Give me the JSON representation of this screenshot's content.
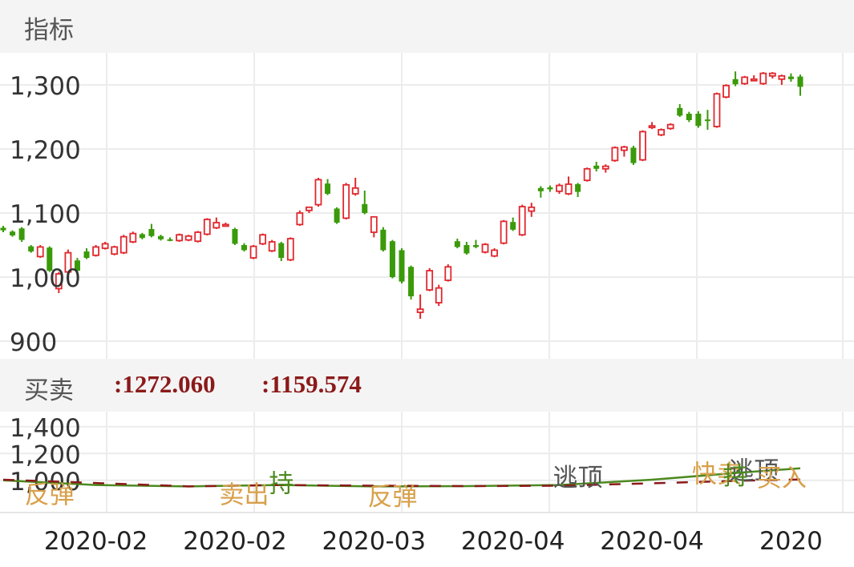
{
  "header": {
    "title": "指标"
  },
  "subheader": {
    "title": "买卖",
    "value_a": ":1272.060",
    "value_b": ":1159.574"
  },
  "colors": {
    "up": "#e0282e",
    "down": "#3a9a0a",
    "fast_line": "#4c8a1f",
    "slow_line": "#8b1a1a"
  },
  "chart_data": [
    {
      "type": "candlestick",
      "ylim": [
        880,
        1340
      ],
      "yticks": [
        "900",
        "1,000",
        "1,100",
        "1,200",
        "1,300"
      ],
      "grid": true,
      "candles": [
        {
          "o": 1077,
          "c": 1073,
          "h": 1080,
          "l": 1070
        },
        {
          "o": 1071,
          "c": 1065,
          "h": 1073,
          "l": 1063
        },
        {
          "o": 1076,
          "c": 1058,
          "h": 1078,
          "l": 1055
        },
        {
          "o": 1048,
          "c": 1040,
          "h": 1050,
          "l": 1038
        },
        {
          "o": 1032,
          "c": 1047,
          "h": 1050,
          "l": 1030
        },
        {
          "o": 1046,
          "c": 1010,
          "h": 1048,
          "l": 1008
        },
        {
          "o": 982,
          "c": 1005,
          "h": 1008,
          "l": 975
        },
        {
          "o": 1008,
          "c": 1038,
          "h": 1043,
          "l": 1005
        },
        {
          "o": 1026,
          "c": 1010,
          "h": 1030,
          "l": 1005
        },
        {
          "o": 1040,
          "c": 1030,
          "h": 1045,
          "l": 1028
        },
        {
          "o": 1034,
          "c": 1047,
          "h": 1050,
          "l": 1032
        },
        {
          "o": 1045,
          "c": 1052,
          "h": 1055,
          "l": 1043
        },
        {
          "o": 1036,
          "c": 1047,
          "h": 1049,
          "l": 1034
        },
        {
          "o": 1038,
          "c": 1063,
          "h": 1066,
          "l": 1036
        },
        {
          "o": 1055,
          "c": 1068,
          "h": 1071,
          "l": 1053
        },
        {
          "o": 1067,
          "c": 1061,
          "h": 1069,
          "l": 1059
        },
        {
          "o": 1075,
          "c": 1064,
          "h": 1083,
          "l": 1062
        },
        {
          "o": 1064,
          "c": 1059,
          "h": 1066,
          "l": 1057
        },
        {
          "o": 1059,
          "c": 1058,
          "h": 1062,
          "l": 1056
        },
        {
          "o": 1057,
          "c": 1066,
          "h": 1068,
          "l": 1055
        },
        {
          "o": 1058,
          "c": 1064,
          "h": 1066,
          "l": 1056
        },
        {
          "o": 1056,
          "c": 1070,
          "h": 1072,
          "l": 1054
        },
        {
          "o": 1067,
          "c": 1090,
          "h": 1092,
          "l": 1065
        },
        {
          "o": 1077,
          "c": 1085,
          "h": 1093,
          "l": 1075
        },
        {
          "o": 1082,
          "c": 1082,
          "h": 1085,
          "l": 1079
        },
        {
          "o": 1075,
          "c": 1052,
          "h": 1077,
          "l": 1050
        },
        {
          "o": 1050,
          "c": 1042,
          "h": 1053,
          "l": 1040
        },
        {
          "o": 1030,
          "c": 1048,
          "h": 1050,
          "l": 1028
        },
        {
          "o": 1052,
          "c": 1066,
          "h": 1068,
          "l": 1050
        },
        {
          "o": 1041,
          "c": 1055,
          "h": 1058,
          "l": 1039
        },
        {
          "o": 1053,
          "c": 1030,
          "h": 1055,
          "l": 1025
        },
        {
          "o": 1027,
          "c": 1060,
          "h": 1062,
          "l": 1025
        },
        {
          "o": 1082,
          "c": 1100,
          "h": 1104,
          "l": 1080
        },
        {
          "o": 1104,
          "c": 1109,
          "h": 1110,
          "l": 1100
        },
        {
          "o": 1113,
          "c": 1152,
          "h": 1155,
          "l": 1110
        },
        {
          "o": 1146,
          "c": 1130,
          "h": 1153,
          "l": 1128
        },
        {
          "o": 1107,
          "c": 1085,
          "h": 1109,
          "l": 1083
        },
        {
          "o": 1092,
          "c": 1144,
          "h": 1147,
          "l": 1090
        },
        {
          "o": 1130,
          "c": 1139,
          "h": 1155,
          "l": 1127
        },
        {
          "o": 1114,
          "c": 1100,
          "h": 1135,
          "l": 1098
        },
        {
          "o": 1070,
          "c": 1094,
          "h": 1095,
          "l": 1062
        },
        {
          "o": 1074,
          "c": 1042,
          "h": 1078,
          "l": 1040
        },
        {
          "o": 1056,
          "c": 1000,
          "h": 1058,
          "l": 998
        },
        {
          "o": 1042,
          "c": 993,
          "h": 1045,
          "l": 990
        },
        {
          "o": 1016,
          "c": 970,
          "h": 1018,
          "l": 965
        },
        {
          "o": 945,
          "c": 950,
          "h": 973,
          "l": 935
        },
        {
          "o": 980,
          "c": 1010,
          "h": 1014,
          "l": 978
        },
        {
          "o": 960,
          "c": 983,
          "h": 988,
          "l": 955
        },
        {
          "o": 995,
          "c": 1016,
          "h": 1020,
          "l": 993
        },
        {
          "o": 1056,
          "c": 1047,
          "h": 1060,
          "l": 1045
        },
        {
          "o": 1050,
          "c": 1037,
          "h": 1055,
          "l": 1035
        },
        {
          "o": 1050,
          "c": 1047,
          "h": 1058,
          "l": 1045
        },
        {
          "o": 1039,
          "c": 1051,
          "h": 1053,
          "l": 1037
        },
        {
          "o": 1033,
          "c": 1042,
          "h": 1045,
          "l": 1031
        },
        {
          "o": 1053,
          "c": 1087,
          "h": 1089,
          "l": 1051
        },
        {
          "o": 1086,
          "c": 1074,
          "h": 1093,
          "l": 1072
        },
        {
          "o": 1066,
          "c": 1110,
          "h": 1113,
          "l": 1064
        },
        {
          "o": 1103,
          "c": 1109,
          "h": 1116,
          "l": 1094
        },
        {
          "o": 1139,
          "c": 1134,
          "h": 1142,
          "l": 1124
        },
        {
          "o": 1140,
          "c": 1137,
          "h": 1143,
          "l": 1133
        },
        {
          "o": 1134,
          "c": 1143,
          "h": 1146,
          "l": 1130
        },
        {
          "o": 1130,
          "c": 1145,
          "h": 1157,
          "l": 1128
        },
        {
          "o": 1145,
          "c": 1133,
          "h": 1147,
          "l": 1125
        },
        {
          "o": 1151,
          "c": 1169,
          "h": 1171,
          "l": 1149
        },
        {
          "o": 1174,
          "c": 1169,
          "h": 1180,
          "l": 1165
        },
        {
          "o": 1169,
          "c": 1173,
          "h": 1176,
          "l": 1163
        },
        {
          "o": 1182,
          "c": 1202,
          "h": 1204,
          "l": 1180
        },
        {
          "o": 1198,
          "c": 1203,
          "h": 1205,
          "l": 1188
        },
        {
          "o": 1202,
          "c": 1178,
          "h": 1205,
          "l": 1175
        },
        {
          "o": 1183,
          "c": 1227,
          "h": 1229,
          "l": 1181
        },
        {
          "o": 1234,
          "c": 1236,
          "h": 1242,
          "l": 1231
        },
        {
          "o": 1222,
          "c": 1230,
          "h": 1232,
          "l": 1220
        },
        {
          "o": 1232,
          "c": 1238,
          "h": 1240,
          "l": 1230
        },
        {
          "o": 1264,
          "c": 1252,
          "h": 1270,
          "l": 1250
        },
        {
          "o": 1255,
          "c": 1245,
          "h": 1258,
          "l": 1242
        },
        {
          "o": 1255,
          "c": 1236,
          "h": 1259,
          "l": 1233
        },
        {
          "o": 1246,
          "c": 1244,
          "h": 1261,
          "l": 1230
        },
        {
          "o": 1235,
          "c": 1286,
          "h": 1288,
          "l": 1233
        },
        {
          "o": 1281,
          "c": 1299,
          "h": 1301,
          "l": 1279
        },
        {
          "o": 1309,
          "c": 1301,
          "h": 1321,
          "l": 1298
        },
        {
          "o": 1302,
          "c": 1312,
          "h": 1314,
          "l": 1300
        },
        {
          "o": 1308,
          "c": 1309,
          "h": 1315,
          "l": 1306
        },
        {
          "o": 1302,
          "c": 1318,
          "h": 1320,
          "l": 1300
        },
        {
          "o": 1314,
          "c": 1318,
          "h": 1320,
          "l": 1310
        },
        {
          "o": 1309,
          "c": 1314,
          "h": 1316,
          "l": 1300
        },
        {
          "o": 1313,
          "c": 1309,
          "h": 1318,
          "l": 1305
        },
        {
          "o": 1313,
          "c": 1297,
          "h": 1316,
          "l": 1283
        }
      ]
    },
    {
      "type": "line",
      "ylim": [
        760,
        1500
      ],
      "yticks": [
        "1,000",
        "1,200",
        "1,400"
      ],
      "x": [
        0,
        10,
        20,
        30,
        40,
        50,
        60,
        70,
        80,
        86
      ],
      "series": [
        {
          "values": [
            1000,
            965,
            955,
            965,
            955,
            957,
            965,
            1005,
            1060,
            1090
          ]
        },
        {
          "values": [
            1005,
            980,
            955,
            965,
            960,
            957,
            960,
            978,
            998,
            1006
          ]
        }
      ],
      "signals": [
        {
          "label": "反弹",
          "x": 5,
          "y": 900,
          "color": "#d8a04a"
        },
        {
          "label": "卖出",
          "x": 26,
          "y": 900,
          "color": "#d8a04a"
        },
        {
          "label": "持",
          "x": 30,
          "y": 985,
          "color": "#4c8a1f"
        },
        {
          "label": "反弹",
          "x": 42,
          "y": 885,
          "color": "#d8a04a"
        },
        {
          "label": "逃顶",
          "x": 62,
          "y": 1030,
          "color": "#555555"
        },
        {
          "label": "快卖",
          "x": 77,
          "y": 1055,
          "color": "#d8a04a"
        },
        {
          "label": "逃顶",
          "x": 81,
          "y": 1080,
          "color": "#555555"
        },
        {
          "label": "持",
          "x": 79,
          "y": 1040,
          "color": "#4c8a1f"
        },
        {
          "label": "买入",
          "x": 84,
          "y": 1025,
          "color": "#d8a04a"
        }
      ],
      "xticks": [
        {
          "label": "2020-02",
          "x": 10
        },
        {
          "label": "2020-02",
          "x": 25
        },
        {
          "label": "2020-03",
          "x": 40
        },
        {
          "label": "2020-04",
          "x": 55
        },
        {
          "label": "2020-04",
          "x": 70
        },
        {
          "label": "2020",
          "x": 85
        }
      ]
    }
  ]
}
